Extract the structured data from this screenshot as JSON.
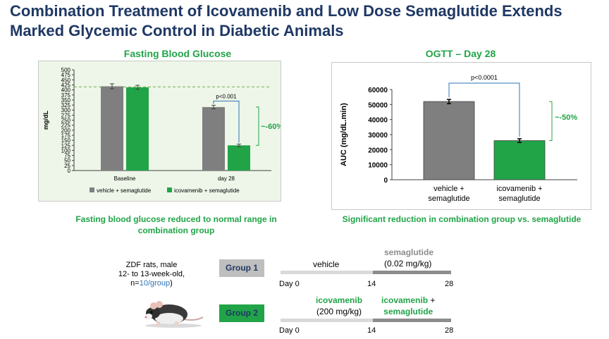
{
  "title_line1": "Combination Treatment of Icovamenib and Low Dose Semaglutide Extends",
  "title_line2": "Marked Glycemic Control in Diabetic Animals",
  "colors": {
    "title": "#1f3864",
    "green": "#21a447",
    "grey_bar": "#7f7f7f",
    "dashed_line": "#70ad47",
    "bracket": "#2e75b6"
  },
  "chart_data": [
    {
      "type": "bar",
      "title": "Fasting Blood Glucose",
      "categories": [
        "Baseline",
        "day 28"
      ],
      "series": [
        {
          "name": "vehicle + semaglutide",
          "values": [
            418,
            315
          ],
          "errors": [
            25,
            18
          ]
        },
        {
          "name": "icovamenib + semaglutide",
          "values": [
            413,
            125
          ],
          "errors": [
            20,
            13
          ]
        }
      ],
      "ylabel": "mg/dL",
      "ylim": [
        0,
        500
      ],
      "yticks": [
        "0",
        "25",
        "50",
        "75",
        "100",
        "125",
        "150",
        "175",
        "200",
        "225",
        "250",
        "275",
        "300",
        "325",
        "350",
        "375",
        "400",
        "425",
        "450",
        "475",
        "500"
      ],
      "reference_line": 415,
      "annotations": {
        "pvalue": "p<0.001",
        "reduction": "~-60%"
      },
      "legend": "bottom"
    },
    {
      "type": "bar",
      "title": "OGTT – Day 28",
      "categories": [
        "vehicle +\nsemaglutide",
        "icovamenib +\nsemaglutide"
      ],
      "category_lines": [
        [
          "vehicle +",
          "semaglutide"
        ],
        [
          "icovamenib +",
          "semaglutide"
        ]
      ],
      "values": [
        52000,
        26000
      ],
      "errors": [
        2800,
        2500
      ],
      "ylabel": "AUC (mg/dL.min)",
      "ylim": [
        0,
        60000
      ],
      "yticks": [
        "0",
        "10000",
        "20000",
        "30000",
        "40000",
        "50000",
        "60000"
      ],
      "annotations": {
        "pvalue": "p<0.0001",
        "reduction": "~-50%"
      }
    }
  ],
  "captions": {
    "left_line1": "Fasting blood glucose reduced to normal range in",
    "left_line2": "combination group",
    "right": "Significant reduction in combination group vs. semaglutide"
  },
  "study": {
    "line1": "ZDF rats, male",
    "line2": "12- to 13-week-old,",
    "n_prefix": "n=",
    "n_value": "10/group",
    "n_suffix": ")"
  },
  "groups": [
    {
      "label": "Group 1",
      "phase1": "vehicle",
      "phase2_line1": "semaglutide",
      "phase2_line2": "(0.02 mg/kg)",
      "days": [
        "Day 0",
        "14",
        "28"
      ]
    },
    {
      "label": "Group 2",
      "phase1_line1": "icovamenib",
      "phase1_line2": "(200 mg/kg)",
      "phase2_line1a": "icovamenib",
      "phase2_line1b": " +",
      "phase2_line2": "semaglutide",
      "days": [
        "Day 0",
        "14",
        "28"
      ]
    }
  ]
}
